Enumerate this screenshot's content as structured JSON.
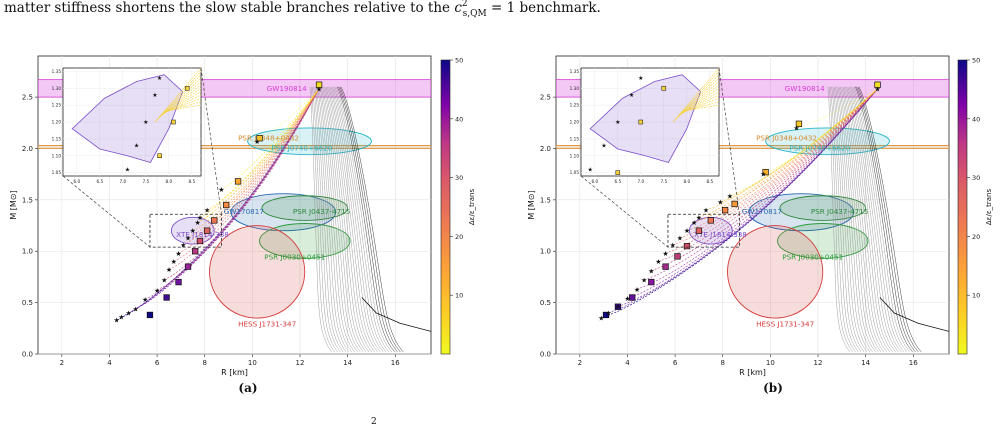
{
  "caption": {
    "top_line": "matter stiffness shortens the slow stable branches relative to the ",
    "top_math_base": "c",
    "top_math_sup": "2",
    "top_math_sub": "s,QM",
    "top_math_rest": " = 1 benchmark.",
    "bottom_fragment_sup": "2"
  },
  "chart_data": [
    {
      "type": "scatter",
      "panel_label": "(a)",
      "xlabel": "R [km]",
      "ylabel": "M [M⊙]",
      "xlim": [
        1,
        17.5
      ],
      "ylim": [
        0,
        2.9
      ],
      "xticks": [
        2,
        4,
        6,
        8,
        10,
        12,
        14,
        16
      ],
      "yticks": [
        0.0,
        0.5,
        1.0,
        1.5,
        2.0,
        2.5
      ],
      "grid": true,
      "colorbar": {
        "label": "Δε/ε_trans",
        "min": 0,
        "max": 50,
        "ticks": [
          10,
          20,
          30,
          40,
          50
        ],
        "colormap": "plasma_r"
      },
      "observations": [
        {
          "name": "GW190814",
          "color": "#d63bd6",
          "type": "band",
          "m_range": [
            2.5,
            2.67
          ]
        },
        {
          "name": "PSR J0348+0432",
          "color": "#d98a2e",
          "type": "band",
          "m_range": [
            2.0,
            2.03
          ],
          "label_at": [
            9.4,
            2.08
          ]
        },
        {
          "name": "PSR J0740+6620",
          "color": "#26b5c8",
          "type": "contour",
          "center": [
            12.4,
            2.07
          ],
          "rx": 2.6,
          "ry": 0.13,
          "label_at": [
            10.8,
            1.98
          ]
        },
        {
          "name": "GW170817",
          "color": "#2a6bb1",
          "type": "contour",
          "center": [
            11.3,
            1.38
          ],
          "rx": 2.2,
          "ry": 0.18,
          "label_at": [
            8.8,
            1.36
          ]
        },
        {
          "name": "PSR J0437-4715",
          "color": "#2b8a3a",
          "type": "contour",
          "center": [
            12.2,
            1.42
          ],
          "rx": 1.8,
          "ry": 0.12,
          "label_at": [
            11.7,
            1.36
          ]
        },
        {
          "name": "PSR J0030+0451",
          "color": "#2a9d3a",
          "type": "contour",
          "center": [
            12.2,
            1.1
          ],
          "rx": 1.9,
          "ry": 0.17,
          "label_at": [
            10.5,
            0.92
          ]
        },
        {
          "name": "XTE J1814-338",
          "color": "#7a4fc9",
          "type": "contour",
          "center": [
            7.5,
            1.2
          ],
          "rx": 0.9,
          "ry": 0.13,
          "label_at": [
            6.8,
            1.14
          ]
        },
        {
          "name": "HESS J1731-347",
          "color": "#d43b3b",
          "type": "contour",
          "center": [
            10.2,
            0.8
          ],
          "rx": 2.0,
          "ry": 0.45,
          "label_at": [
            9.4,
            0.27
          ]
        }
      ],
      "stars": [
        [
          4.3,
          0.33
        ],
        [
          4.5,
          0.36
        ],
        [
          4.8,
          0.4
        ],
        [
          5.1,
          0.44
        ],
        [
          5.5,
          0.53
        ],
        [
          6.0,
          0.62
        ],
        [
          6.3,
          0.72
        ],
        [
          6.5,
          0.82
        ],
        [
          6.7,
          0.9
        ],
        [
          6.9,
          0.98
        ],
        [
          7.1,
          1.06
        ],
        [
          7.3,
          1.13
        ],
        [
          7.5,
          1.2
        ],
        [
          7.7,
          1.28
        ],
        [
          7.8,
          1.33
        ],
        [
          8.1,
          1.4
        ],
        [
          8.7,
          1.6
        ],
        [
          10.2,
          2.07
        ],
        [
          12.8,
          2.58
        ]
      ],
      "squares": [
        [
          5.7,
          0.38
        ],
        [
          6.4,
          0.55
        ],
        [
          6.9,
          0.7
        ],
        [
          7.3,
          0.85
        ],
        [
          7.6,
          1.0
        ],
        [
          7.8,
          1.1
        ],
        [
          8.1,
          1.2
        ],
        [
          8.4,
          1.3
        ],
        [
          8.9,
          1.45
        ],
        [
          9.4,
          1.68
        ],
        [
          10.3,
          2.1
        ],
        [
          12.8,
          2.62
        ]
      ],
      "inset": {
        "xlim": [
          5.7,
          8.7
        ],
        "ylim": [
          1.04,
          1.36
        ],
        "xticks": [
          "6.0",
          "6.5",
          "7.0",
          "7.5",
          "8.0",
          "8.5"
        ],
        "yticks": [
          "1.05",
          "1.10",
          "1.15",
          "1.20",
          "1.25",
          "1.30",
          "1.35"
        ]
      }
    },
    {
      "type": "scatter",
      "panel_label": "(b)",
      "xlabel": "R [km]",
      "ylabel": "M [M⊙]",
      "xlim": [
        1,
        17.5
      ],
      "ylim": [
        0,
        2.9
      ],
      "xticks": [
        2,
        4,
        6,
        8,
        10,
        12,
        14,
        16
      ],
      "yticks": [
        0.0,
        0.5,
        1.0,
        1.5,
        2.0,
        2.5
      ],
      "grid": true,
      "colorbar": {
        "label": "Δε/ε_trans",
        "min": 0,
        "max": 50,
        "ticks": [
          10,
          20,
          30,
          40,
          50
        ],
        "colormap": "plasma_r"
      },
      "observations": [
        {
          "name": "GW190814",
          "color": "#d63bd6",
          "type": "band",
          "m_range": [
            2.5,
            2.67
          ]
        },
        {
          "name": "PSR J0348+0432",
          "color": "#d98a2e",
          "type": "band",
          "m_range": [
            2.0,
            2.03
          ],
          "label_at": [
            9.4,
            2.08
          ]
        },
        {
          "name": "PSR J0740+6620",
          "color": "#26b5c8",
          "type": "contour",
          "center": [
            12.4,
            2.07
          ],
          "rx": 2.6,
          "ry": 0.13,
          "label_at": [
            10.8,
            1.98
          ]
        },
        {
          "name": "GW170817",
          "color": "#2a6bb1",
          "type": "contour",
          "center": [
            11.3,
            1.38
          ],
          "rx": 2.2,
          "ry": 0.18,
          "label_at": [
            8.8,
            1.36
          ]
        },
        {
          "name": "PSR J0437-4715",
          "color": "#2b8a3a",
          "type": "contour",
          "center": [
            12.2,
            1.42
          ],
          "rx": 1.8,
          "ry": 0.12,
          "label_at": [
            11.7,
            1.36
          ]
        },
        {
          "name": "PSR J0030+0451",
          "color": "#2a9d3a",
          "type": "contour",
          "center": [
            12.2,
            1.1
          ],
          "rx": 1.9,
          "ry": 0.17,
          "label_at": [
            10.5,
            0.92
          ]
        },
        {
          "name": "XTE J1814-338",
          "color": "#7a4fc9",
          "type": "contour",
          "center": [
            7.5,
            1.2
          ],
          "rx": 0.9,
          "ry": 0.13,
          "label_at": [
            6.8,
            1.14
          ]
        },
        {
          "name": "HESS J1731-347",
          "color": "#d43b3b",
          "type": "contour",
          "center": [
            10.2,
            0.8
          ],
          "rx": 2.0,
          "ry": 0.45,
          "label_at": [
            9.4,
            0.27
          ]
        }
      ],
      "stars": [
        [
          2.9,
          0.35
        ],
        [
          3.2,
          0.4
        ],
        [
          3.6,
          0.46
        ],
        [
          4.0,
          0.54
        ],
        [
          4.4,
          0.63
        ],
        [
          4.7,
          0.72
        ],
        [
          5.0,
          0.81
        ],
        [
          5.3,
          0.9
        ],
        [
          5.6,
          0.98
        ],
        [
          5.9,
          1.06
        ],
        [
          6.2,
          1.13
        ],
        [
          6.5,
          1.2
        ],
        [
          6.8,
          1.28
        ],
        [
          7.0,
          1.33
        ],
        [
          7.3,
          1.4
        ],
        [
          7.9,
          1.48
        ],
        [
          8.3,
          1.54
        ],
        [
          9.7,
          1.75
        ],
        [
          11.1,
          2.2
        ],
        [
          14.5,
          2.58
        ]
      ],
      "squares": [
        [
          3.1,
          0.38
        ],
        [
          3.6,
          0.46
        ],
        [
          4.2,
          0.55
        ],
        [
          5.0,
          0.7
        ],
        [
          5.6,
          0.85
        ],
        [
          6.1,
          0.95
        ],
        [
          6.5,
          1.05
        ],
        [
          7.0,
          1.2
        ],
        [
          7.5,
          1.3
        ],
        [
          8.1,
          1.4
        ],
        [
          8.5,
          1.46
        ],
        [
          9.8,
          1.77
        ],
        [
          11.2,
          2.24
        ],
        [
          14.5,
          2.62
        ]
      ],
      "inset": {
        "xlim": [
          5.7,
          8.7
        ],
        "ylim": [
          1.04,
          1.36
        ],
        "xticks": [
          "6.0",
          "6.5",
          "7.0",
          "7.5",
          "8.0",
          "8.5"
        ],
        "yticks": [
          "1.05",
          "1.10",
          "1.15",
          "1.20",
          "1.25",
          "1.30",
          "1.35"
        ]
      }
    }
  ]
}
